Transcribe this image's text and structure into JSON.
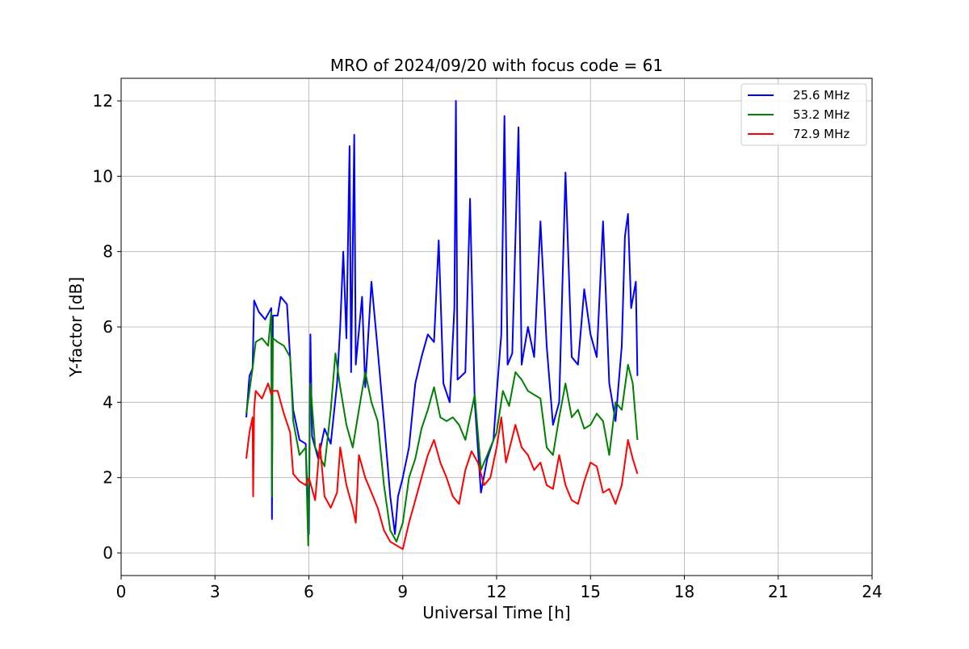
{
  "chart_data": {
    "type": "line",
    "title": "MRO of 2024/09/20 with focus code = 61",
    "xlabel": "Universal Time [h]",
    "ylabel": "Y-factor [dB]",
    "xlim": [
      0,
      24
    ],
    "ylim": [
      -0.6,
      12.6
    ],
    "xticks": [
      0,
      3,
      6,
      9,
      12,
      15,
      18,
      21,
      24
    ],
    "yticks": [
      0,
      2,
      4,
      6,
      8,
      10,
      12
    ],
    "grid": true,
    "legend_position": "top-right",
    "series": [
      {
        "name": "25.6 MHz",
        "color": "#0000ff",
        "points": [
          [
            4.0,
            3.6
          ],
          [
            4.1,
            4.7
          ],
          [
            4.2,
            4.9
          ],
          [
            4.25,
            6.7
          ],
          [
            4.4,
            6.4
          ],
          [
            4.6,
            6.2
          ],
          [
            4.8,
            6.5
          ],
          [
            4.82,
            0.9
          ],
          [
            4.85,
            6.3
          ],
          [
            5.0,
            6.3
          ],
          [
            5.1,
            6.8
          ],
          [
            5.3,
            6.6
          ],
          [
            5.5,
            3.8
          ],
          [
            5.7,
            3.0
          ],
          [
            5.9,
            2.9
          ],
          [
            6.0,
            0.5
          ],
          [
            6.05,
            5.8
          ],
          [
            6.1,
            3.1
          ],
          [
            6.3,
            2.5
          ],
          [
            6.5,
            3.3
          ],
          [
            6.7,
            2.9
          ],
          [
            6.9,
            4.5
          ],
          [
            7.0,
            6.0
          ],
          [
            7.1,
            8.0
          ],
          [
            7.2,
            5.7
          ],
          [
            7.3,
            10.8
          ],
          [
            7.35,
            4.8
          ],
          [
            7.45,
            11.1
          ],
          [
            7.5,
            5.0
          ],
          [
            7.7,
            6.8
          ],
          [
            7.8,
            4.4
          ],
          [
            8.0,
            7.2
          ],
          [
            8.2,
            5.4
          ],
          [
            8.4,
            3.5
          ],
          [
            8.6,
            1.5
          ],
          [
            8.75,
            0.5
          ],
          [
            8.85,
            1.5
          ],
          [
            9.0,
            2.0
          ],
          [
            9.2,
            2.8
          ],
          [
            9.4,
            4.5
          ],
          [
            9.6,
            5.2
          ],
          [
            9.8,
            5.8
          ],
          [
            10.0,
            5.6
          ],
          [
            10.15,
            8.3
          ],
          [
            10.3,
            4.5
          ],
          [
            10.5,
            4.0
          ],
          [
            10.65,
            6.5
          ],
          [
            10.7,
            12.0
          ],
          [
            10.75,
            4.6
          ],
          [
            11.0,
            4.8
          ],
          [
            11.15,
            9.4
          ],
          [
            11.3,
            4.0
          ],
          [
            11.5,
            1.6
          ],
          [
            11.7,
            2.5
          ],
          [
            11.9,
            3.0
          ],
          [
            12.0,
            4.2
          ],
          [
            12.15,
            5.8
          ],
          [
            12.25,
            11.6
          ],
          [
            12.35,
            5.0
          ],
          [
            12.5,
            5.3
          ],
          [
            12.7,
            11.3
          ],
          [
            12.8,
            5.0
          ],
          [
            13.0,
            6.0
          ],
          [
            13.2,
            5.2
          ],
          [
            13.4,
            8.8
          ],
          [
            13.6,
            5.5
          ],
          [
            13.8,
            3.4
          ],
          [
            14.0,
            4.0
          ],
          [
            14.2,
            10.1
          ],
          [
            14.4,
            5.2
          ],
          [
            14.6,
            5.0
          ],
          [
            14.8,
            7.0
          ],
          [
            15.0,
            5.8
          ],
          [
            15.2,
            5.2
          ],
          [
            15.4,
            8.8
          ],
          [
            15.6,
            4.5
          ],
          [
            15.8,
            3.5
          ],
          [
            16.0,
            5.5
          ],
          [
            16.1,
            8.4
          ],
          [
            16.2,
            9.0
          ],
          [
            16.3,
            6.5
          ],
          [
            16.45,
            7.2
          ],
          [
            16.5,
            4.7
          ]
        ]
      },
      {
        "name": "53.2 MHz",
        "color": "#008000",
        "points": [
          [
            4.0,
            3.7
          ],
          [
            4.1,
            4.3
          ],
          [
            4.2,
            4.9
          ],
          [
            4.3,
            5.6
          ],
          [
            4.5,
            5.7
          ],
          [
            4.7,
            5.5
          ],
          [
            4.8,
            6.4
          ],
          [
            4.82,
            1.5
          ],
          [
            4.85,
            5.7
          ],
          [
            5.0,
            5.6
          ],
          [
            5.2,
            5.5
          ],
          [
            5.4,
            5.2
          ],
          [
            5.5,
            3.5
          ],
          [
            5.7,
            2.6
          ],
          [
            5.9,
            2.8
          ],
          [
            5.98,
            0.2
          ],
          [
            6.05,
            4.5
          ],
          [
            6.2,
            2.8
          ],
          [
            6.5,
            2.3
          ],
          [
            6.7,
            3.8
          ],
          [
            6.85,
            5.3
          ],
          [
            7.0,
            4.4
          ],
          [
            7.2,
            3.4
          ],
          [
            7.4,
            2.8
          ],
          [
            7.6,
            3.8
          ],
          [
            7.8,
            4.8
          ],
          [
            8.0,
            4.0
          ],
          [
            8.2,
            3.5
          ],
          [
            8.4,
            1.8
          ],
          [
            8.6,
            0.6
          ],
          [
            8.8,
            0.3
          ],
          [
            9.0,
            0.8
          ],
          [
            9.2,
            2.0
          ],
          [
            9.4,
            2.5
          ],
          [
            9.6,
            3.3
          ],
          [
            9.8,
            3.8
          ],
          [
            10.0,
            4.4
          ],
          [
            10.2,
            3.6
          ],
          [
            10.4,
            3.5
          ],
          [
            10.6,
            3.6
          ],
          [
            10.8,
            3.4
          ],
          [
            11.0,
            3.0
          ],
          [
            11.3,
            4.2
          ],
          [
            11.5,
            2.2
          ],
          [
            11.7,
            2.6
          ],
          [
            12.0,
            3.2
          ],
          [
            12.2,
            4.3
          ],
          [
            12.4,
            3.9
          ],
          [
            12.6,
            4.8
          ],
          [
            12.8,
            4.6
          ],
          [
            13.0,
            4.3
          ],
          [
            13.2,
            4.2
          ],
          [
            13.4,
            4.1
          ],
          [
            13.6,
            2.8
          ],
          [
            13.8,
            2.6
          ],
          [
            14.0,
            3.6
          ],
          [
            14.2,
            4.5
          ],
          [
            14.4,
            3.6
          ],
          [
            14.6,
            3.8
          ],
          [
            14.8,
            3.3
          ],
          [
            15.0,
            3.4
          ],
          [
            15.2,
            3.7
          ],
          [
            15.4,
            3.5
          ],
          [
            15.6,
            2.6
          ],
          [
            15.8,
            4.0
          ],
          [
            16.0,
            3.8
          ],
          [
            16.2,
            5.0
          ],
          [
            16.35,
            4.5
          ],
          [
            16.5,
            3.0
          ]
        ]
      },
      {
        "name": "72.9 MHz",
        "color": "#ff0000",
        "points": [
          [
            4.0,
            2.5
          ],
          [
            4.1,
            3.2
          ],
          [
            4.2,
            3.6
          ],
          [
            4.22,
            1.5
          ],
          [
            4.25,
            3.8
          ],
          [
            4.3,
            4.3
          ],
          [
            4.5,
            4.1
          ],
          [
            4.7,
            4.5
          ],
          [
            4.8,
            4.2
          ],
          [
            4.85,
            4.3
          ],
          [
            5.0,
            4.3
          ],
          [
            5.2,
            3.7
          ],
          [
            5.4,
            3.2
          ],
          [
            5.5,
            2.1
          ],
          [
            5.7,
            1.9
          ],
          [
            5.9,
            1.8
          ],
          [
            6.0,
            2.0
          ],
          [
            6.2,
            1.4
          ],
          [
            6.35,
            2.9
          ],
          [
            6.5,
            1.5
          ],
          [
            6.7,
            1.2
          ],
          [
            6.9,
            1.6
          ],
          [
            7.0,
            2.8
          ],
          [
            7.2,
            1.8
          ],
          [
            7.4,
            1.2
          ],
          [
            7.5,
            0.8
          ],
          [
            7.6,
            2.6
          ],
          [
            7.8,
            2.0
          ],
          [
            8.0,
            1.6
          ],
          [
            8.2,
            1.2
          ],
          [
            8.4,
            0.6
          ],
          [
            8.6,
            0.3
          ],
          [
            8.8,
            0.2
          ],
          [
            9.0,
            0.1
          ],
          [
            9.2,
            0.8
          ],
          [
            9.4,
            1.4
          ],
          [
            9.6,
            2.0
          ],
          [
            9.8,
            2.6
          ],
          [
            10.0,
            3.0
          ],
          [
            10.2,
            2.4
          ],
          [
            10.4,
            2.0
          ],
          [
            10.6,
            1.5
          ],
          [
            10.8,
            1.3
          ],
          [
            11.0,
            2.2
          ],
          [
            11.2,
            2.7
          ],
          [
            11.4,
            2.4
          ],
          [
            11.6,
            1.8
          ],
          [
            11.8,
            2.0
          ],
          [
            12.0,
            2.8
          ],
          [
            12.15,
            3.6
          ],
          [
            12.3,
            2.4
          ],
          [
            12.6,
            3.4
          ],
          [
            12.8,
            2.8
          ],
          [
            13.0,
            2.6
          ],
          [
            13.2,
            2.2
          ],
          [
            13.4,
            2.4
          ],
          [
            13.6,
            1.8
          ],
          [
            13.8,
            1.7
          ],
          [
            14.0,
            2.6
          ],
          [
            14.2,
            1.8
          ],
          [
            14.4,
            1.4
          ],
          [
            14.6,
            1.3
          ],
          [
            14.8,
            1.9
          ],
          [
            15.0,
            2.4
          ],
          [
            15.2,
            2.3
          ],
          [
            15.4,
            1.6
          ],
          [
            15.6,
            1.7
          ],
          [
            15.8,
            1.3
          ],
          [
            16.0,
            1.8
          ],
          [
            16.2,
            3.0
          ],
          [
            16.35,
            2.5
          ],
          [
            16.5,
            2.1
          ]
        ]
      }
    ]
  }
}
